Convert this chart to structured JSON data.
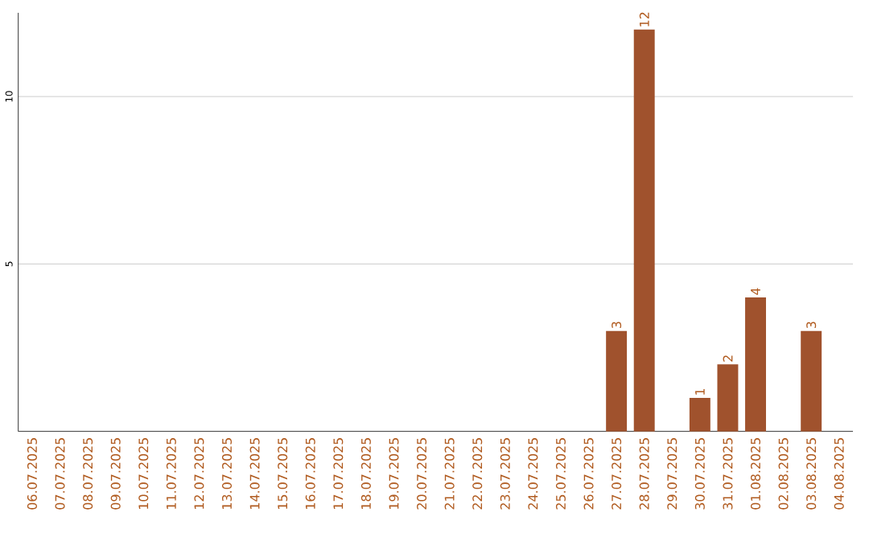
{
  "chart_data": {
    "type": "bar",
    "categories": [
      "06.07.2025",
      "07.07.2025",
      "08.07.2025",
      "09.07.2025",
      "10.07.2025",
      "11.07.2025",
      "12.07.2025",
      "13.07.2025",
      "14.07.2025",
      "15.07.2025",
      "16.07.2025",
      "17.07.2025",
      "18.07.2025",
      "19.07.2025",
      "20.07.2025",
      "21.07.2025",
      "22.07.2025",
      "23.07.2025",
      "24.07.2025",
      "25.07.2025",
      "26.07.2025",
      "27.07.2025",
      "28.07.2025",
      "29.07.2025",
      "30.07.2025",
      "31.07.2025",
      "01.08.2025",
      "02.08.2025",
      "03.08.2025",
      "04.08.2025"
    ],
    "values": [
      null,
      null,
      null,
      null,
      null,
      null,
      null,
      null,
      null,
      null,
      null,
      null,
      null,
      null,
      null,
      null,
      null,
      null,
      null,
      null,
      null,
      3,
      12,
      null,
      1,
      2,
      4,
      null,
      3,
      null
    ],
    "color": "#a0522d",
    "ylim": [
      0,
      12.5
    ],
    "yticks": [
      5,
      10
    ],
    "grid": "y",
    "data_labels": true
  }
}
